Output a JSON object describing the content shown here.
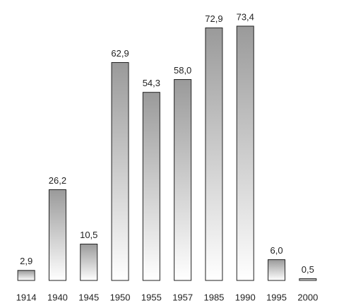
{
  "chart_data": {
    "type": "bar",
    "categories": [
      "1914",
      "1940",
      "1945",
      "1950",
      "1955",
      "1957",
      "1985",
      "1990",
      "1995",
      "2000"
    ],
    "values": [
      2.9,
      26.2,
      10.5,
      62.9,
      54.3,
      58.0,
      72.9,
      73.4,
      6.0,
      0.5
    ],
    "value_labels": [
      "2,9",
      "26,2",
      "10,5",
      "62,9",
      "54,3",
      "58,0",
      "72,9",
      "73,4",
      "6,0",
      "0,5"
    ],
    "color": "#9a9a9a"
  }
}
